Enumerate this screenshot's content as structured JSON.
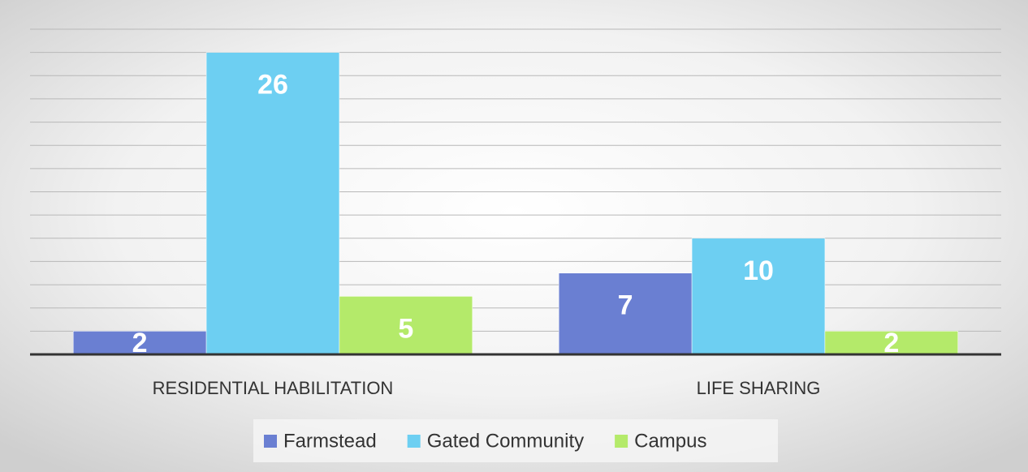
{
  "chart_data": {
    "type": "bar",
    "categories": [
      "RESIDENTIAL HABILITATION",
      "LIFE SHARING"
    ],
    "series": [
      {
        "name": "Farmstead",
        "color": "#6a7fd2",
        "values": [
          2,
          7
        ]
      },
      {
        "name": "Gated Community",
        "color": "#6dcff2",
        "values": [
          26,
          10
        ]
      },
      {
        "name": "Campus",
        "color": "#b4ea6a",
        "values": [
          5,
          2
        ]
      }
    ],
    "ylim": [
      0,
      28
    ],
    "yticks": [
      0,
      2,
      4,
      6,
      8,
      10,
      12,
      14,
      16,
      18,
      20,
      22,
      24,
      26,
      28
    ],
    "grid": true,
    "legend": "bottom"
  }
}
